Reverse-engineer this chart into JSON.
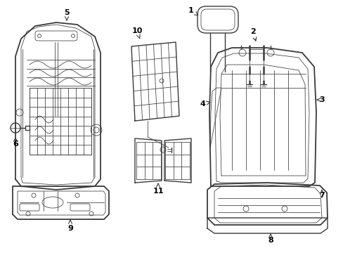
{
  "bg_color": "#ffffff",
  "line_color": "#3a3a3a",
  "label_color": "#000000",
  "fig_width": 4.89,
  "fig_height": 3.6,
  "dpi": 100,
  "lw_main": 1.0,
  "lw_thin": 0.55,
  "lw_thick": 1.3
}
